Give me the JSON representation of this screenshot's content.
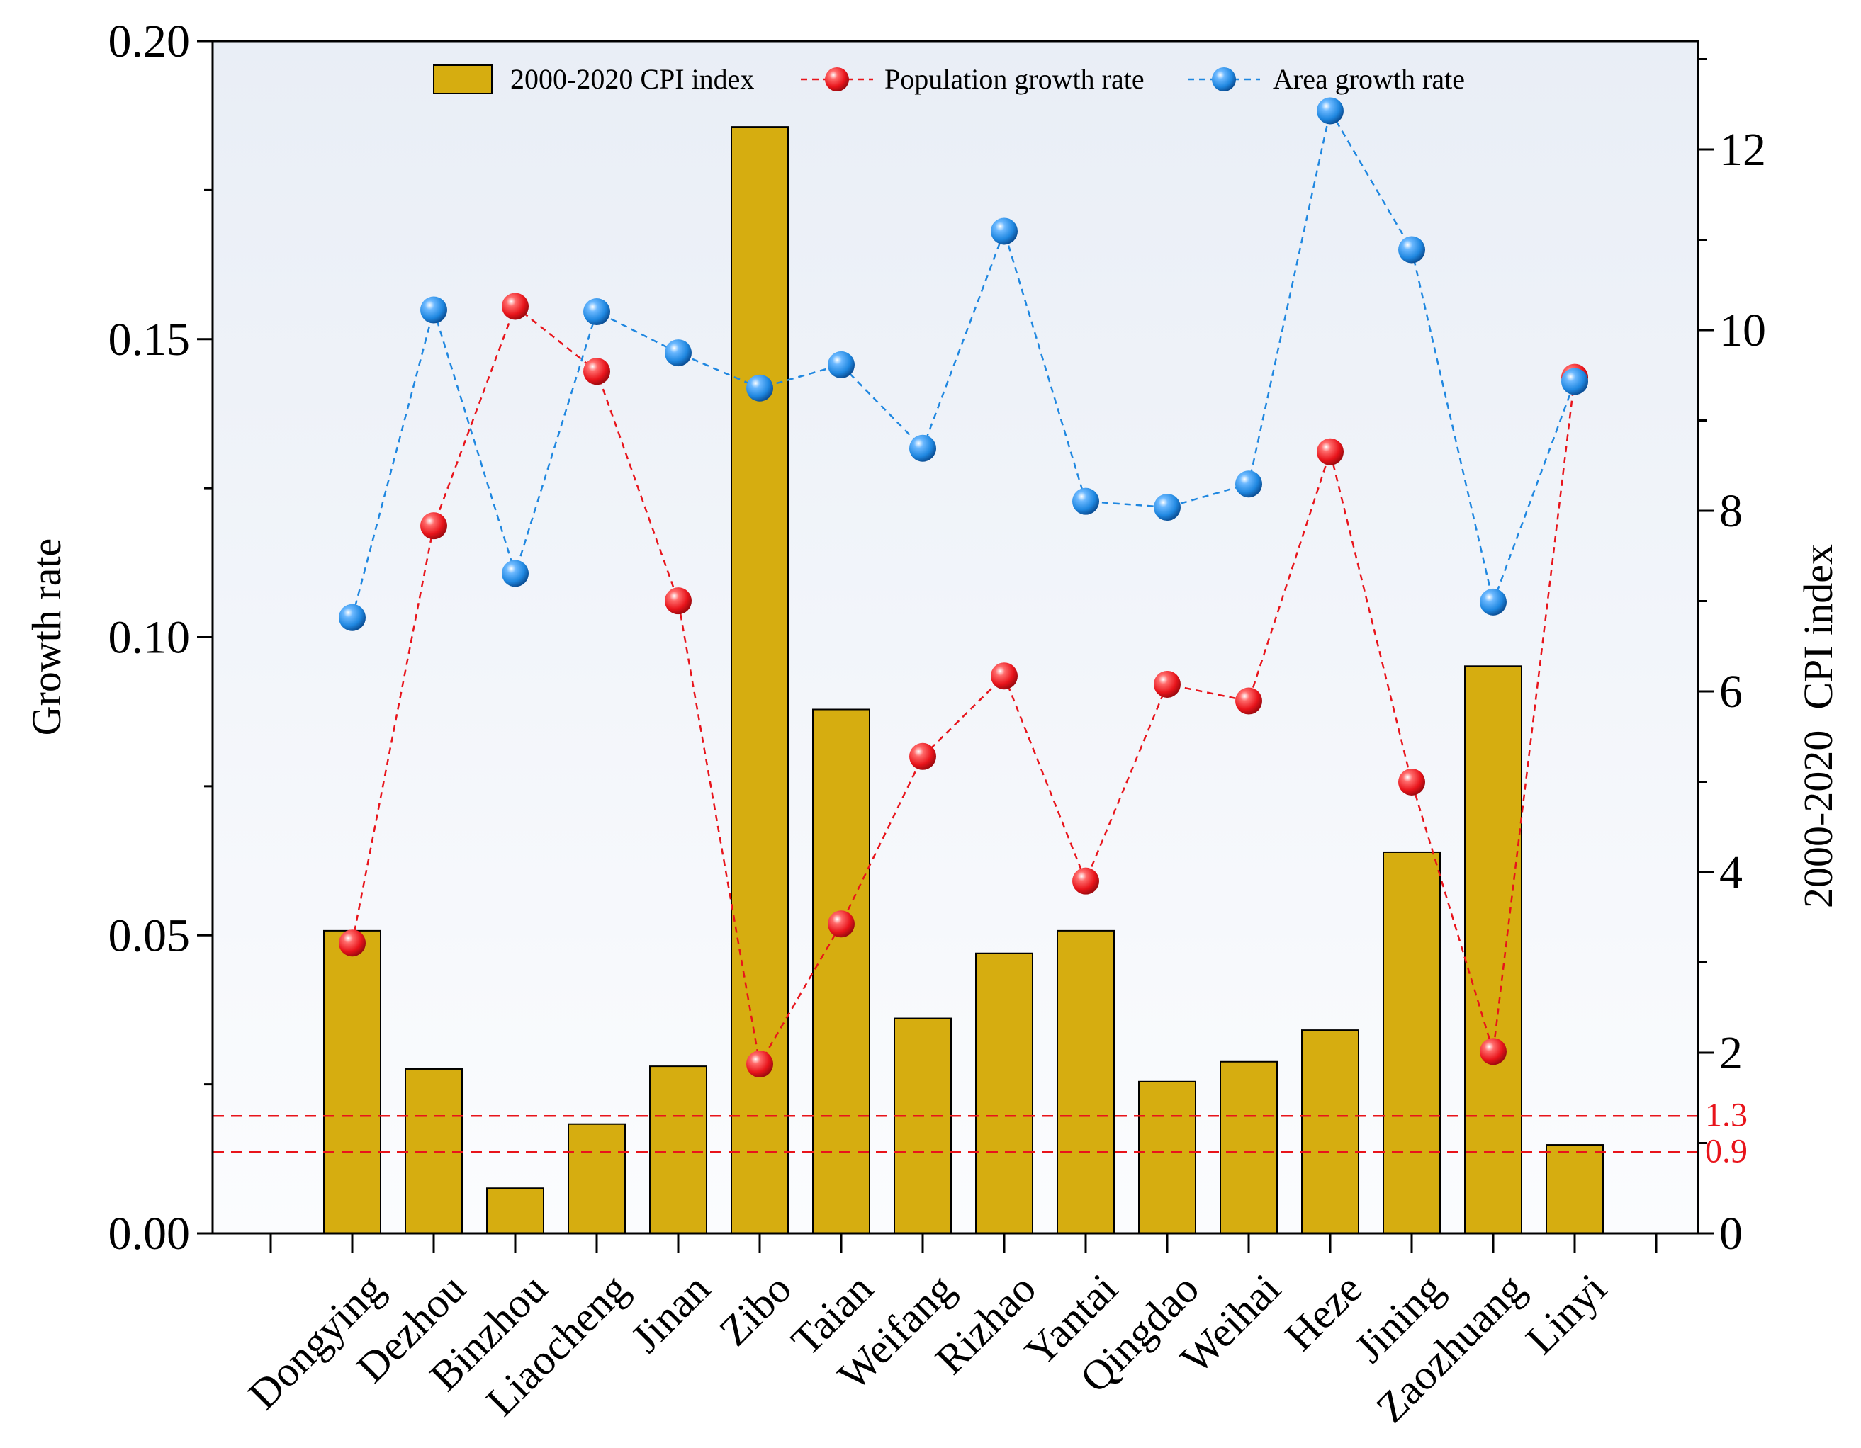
{
  "chart_data": {
    "type": "bar+line",
    "categories": [
      "Dongying",
      "Dezhou",
      "Binzhou",
      "Liaocheng",
      "Jinan",
      "Zibo",
      "Taian",
      "Weifang",
      "Rizhao",
      "Yantai",
      "Qingdao",
      "Weihai",
      "Heze",
      "Jining",
      "Zaozhuang",
      "Linyi"
    ],
    "bar_series": {
      "name": "2000-2020 CPI index",
      "axis": "right",
      "color": "#D6AD10",
      "values": [
        3.35,
        1.82,
        0.5,
        1.21,
        1.85,
        12.25,
        5.8,
        2.38,
        3.1,
        3.35,
        1.68,
        1.9,
        2.25,
        4.22,
        6.28,
        0.98
      ]
    },
    "line_series": [
      {
        "name": "Population growth rate",
        "axis": "left",
        "color": "#E8141B",
        "values": [
          0.0487,
          0.1187,
          0.1555,
          0.1446,
          0.1061,
          0.0284,
          0.0519,
          0.08,
          0.0935,
          0.0591,
          0.0921,
          0.0893,
          0.1311,
          0.0757,
          0.0305,
          0.1436
        ]
      },
      {
        "name": "Area growth rate",
        "axis": "left",
        "color": "#1F87E0",
        "values": [
          0.1033,
          0.1549,
          0.1107,
          0.1546,
          0.1477,
          0.1418,
          0.1457,
          0.1317,
          0.1681,
          0.1228,
          0.1218,
          0.1257,
          0.1883,
          0.165,
          0.1059,
          0.1429
        ]
      }
    ],
    "y_left": {
      "label": "Growth rate",
      "range": [
        0,
        0.2
      ],
      "ticks": [
        0,
        0.05,
        0.1,
        0.15,
        0.2
      ],
      "tick_labels": [
        "0.00",
        "0.05",
        "0.10",
        "0.15",
        "0.20"
      ]
    },
    "y_right": {
      "label": "2000-2020  CPI index",
      "range": [
        0,
        13.2
      ],
      "ticks": [
        0,
        2,
        4,
        6,
        8,
        10,
        12
      ],
      "tick_labels": [
        "0",
        "2",
        "4",
        "6",
        "8",
        "10",
        "12"
      ]
    },
    "reference_lines": [
      {
        "label": "1.3",
        "value": 1.3,
        "axis": "right",
        "color": "#E8141B"
      },
      {
        "label": "0.9",
        "value": 0.9,
        "axis": "right",
        "color": "#E8141B"
      }
    ],
    "legend_placement": "top-center"
  }
}
